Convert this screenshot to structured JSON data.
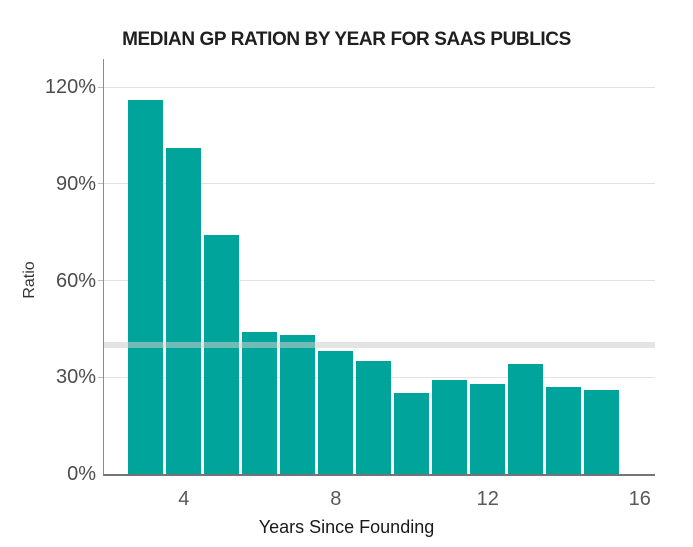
{
  "chart_data": {
    "type": "bar",
    "title": "MEDIAN GP RATION BY YEAR FOR SAAS PUBLICS",
    "xlabel": "Years Since Founding",
    "ylabel": "Ratio",
    "categories": [
      3,
      4,
      5,
      6,
      7,
      8,
      9,
      10,
      11,
      12,
      13,
      14,
      15
    ],
    "values": [
      116,
      101,
      74,
      44,
      43,
      38,
      35,
      25,
      29,
      28,
      34,
      27,
      26
    ],
    "unit": "%",
    "x_ticks": [
      4,
      8,
      12,
      16
    ],
    "x_tick_labels": [
      "4",
      "8",
      "12",
      "16"
    ],
    "y_ticks": [
      0,
      30,
      60,
      90,
      120
    ],
    "y_tick_labels": [
      "0%",
      "30%",
      "60%",
      "90%",
      "120%"
    ],
    "xlim": [
      1.9,
      16.4
    ],
    "ylim": [
      0,
      128.7
    ],
    "grid": "horizontal",
    "legend": "none",
    "reference_line": {
      "value": 40,
      "label": ""
    },
    "bar_color": "#00A49B",
    "reference_line_color": "rgba(205,205,205,0.55)",
    "gridline_color": "#e2e2e2"
  }
}
